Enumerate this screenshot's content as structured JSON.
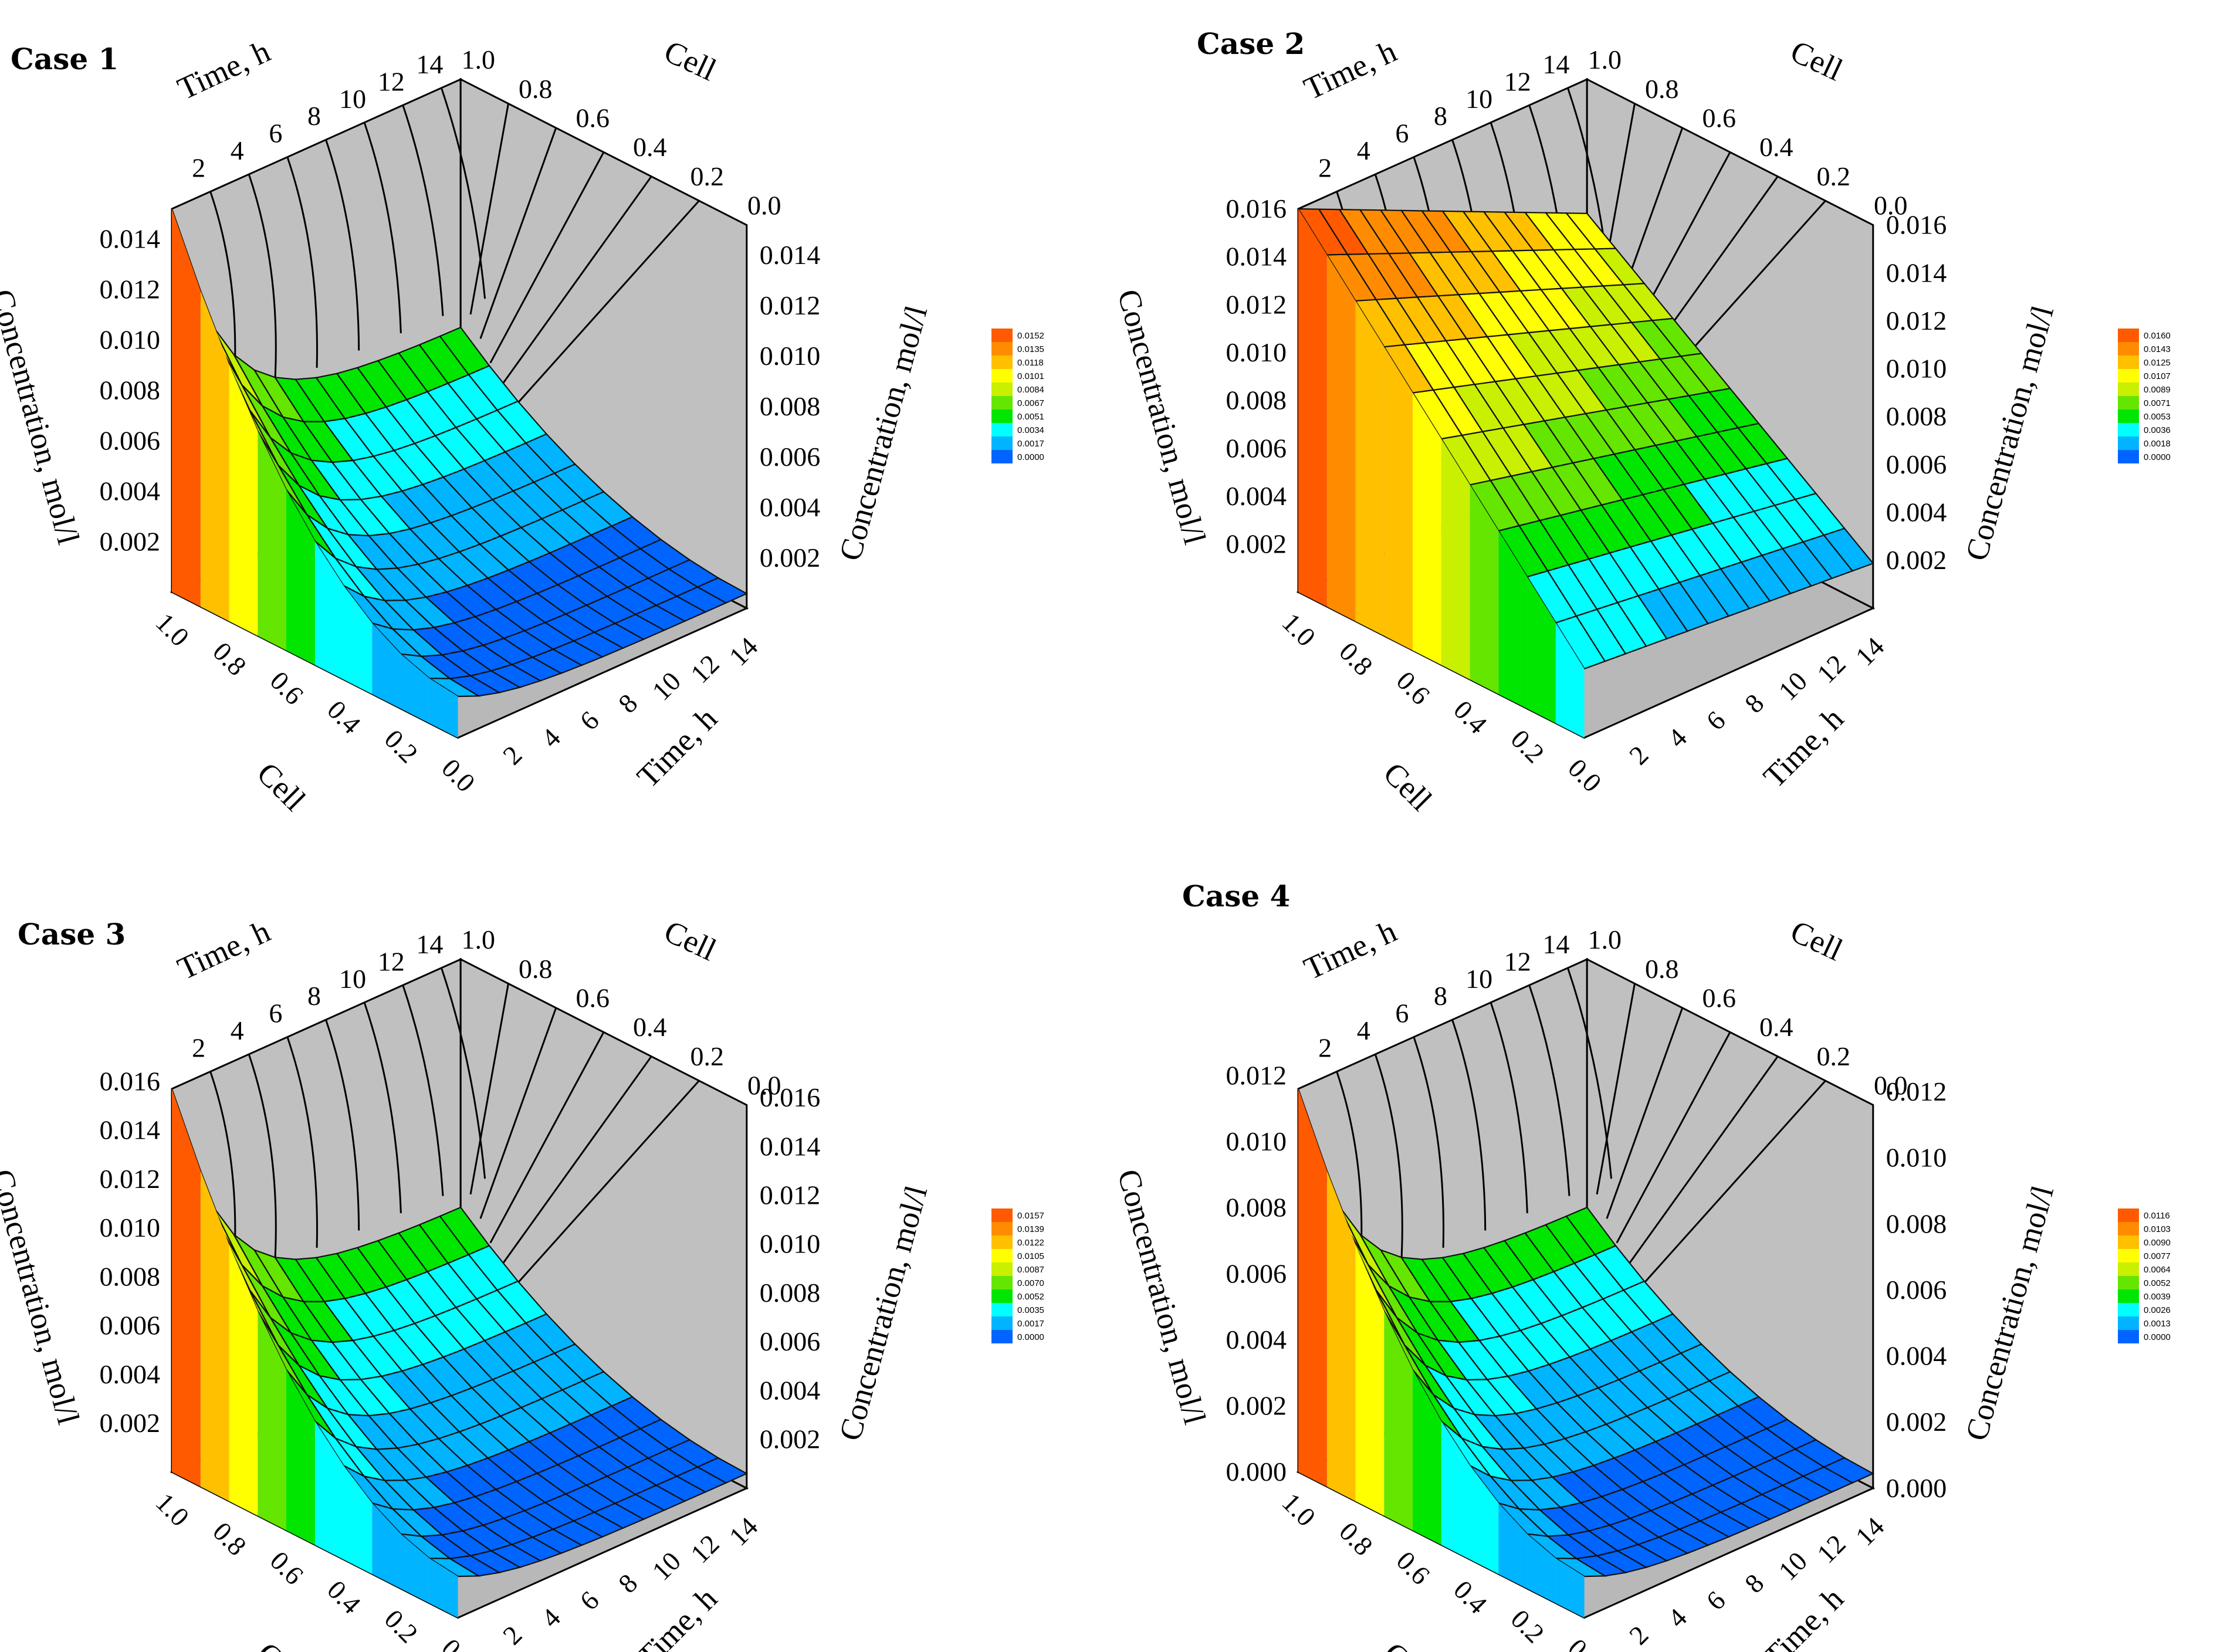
{
  "figure": {
    "description_free": true
  },
  "chart_data": [
    {
      "type": "surface",
      "title": "Case 1",
      "x_label": "Time, h",
      "y_label": "Cell",
      "z_label": "Concentration, mol/l",
      "time_ticks": [
        "2",
        "4",
        "6",
        "8",
        "10",
        "12",
        "14"
      ],
      "cell_ticks": [
        "1.0",
        "0.8",
        "0.6",
        "0.4",
        "0.2",
        "0.0"
      ],
      "z_ticks": [
        "0.002",
        "0.004",
        "0.006",
        "0.008",
        "0.010",
        "0.012",
        "0.014"
      ],
      "time_range": [
        0,
        15
      ],
      "cell_range": [
        0,
        1
      ],
      "z_range": [
        0,
        0.0152
      ],
      "max_value": 0.0152,
      "surface_shape": "decay",
      "legend": [
        "0.0152",
        "0.0135",
        "0.0118",
        "0.0101",
        "0.0084",
        "0.0067",
        "0.0051",
        "0.0034",
        "0.0017",
        "0.0000"
      ]
    },
    {
      "type": "surface",
      "title": "Case 2",
      "x_label": "Time, h",
      "y_label": "Cell",
      "z_label": "Concentration, mol/l",
      "time_ticks": [
        "2",
        "4",
        "6",
        "8",
        "10",
        "12",
        "14"
      ],
      "cell_ticks": [
        "1.0",
        "0.8",
        "0.6",
        "0.4",
        "0.2",
        "0.0"
      ],
      "z_ticks": [
        "0.002",
        "0.004",
        "0.006",
        "0.008",
        "0.010",
        "0.012",
        "0.014",
        "0.016"
      ],
      "time_range": [
        0,
        15
      ],
      "cell_range": [
        0,
        1
      ],
      "z_range": [
        0,
        0.016
      ],
      "max_value": 0.016,
      "surface_shape": "linear",
      "legend": [
        "0.0160",
        "0.0143",
        "0.0125",
        "0.0107",
        "0.0089",
        "0.0071",
        "0.0053",
        "0.0036",
        "0.0018",
        "0.0000"
      ]
    },
    {
      "type": "surface",
      "title": "Case 3",
      "x_label": "Time, h",
      "y_label": "Cell",
      "z_label": "Concentration, mol/l",
      "time_ticks": [
        "2",
        "4",
        "6",
        "8",
        "10",
        "12",
        "14"
      ],
      "cell_ticks": [
        "1.0",
        "0.8",
        "0.6",
        "0.4",
        "0.2",
        "0.0"
      ],
      "z_ticks": [
        "0.002",
        "0.004",
        "0.006",
        "0.008",
        "0.010",
        "0.012",
        "0.014",
        "0.016"
      ],
      "time_range": [
        0,
        15
      ],
      "cell_range": [
        0,
        1
      ],
      "z_range": [
        0,
        0.0157
      ],
      "max_value": 0.0157,
      "surface_shape": "decay",
      "legend": [
        "0.0157",
        "0.0139",
        "0.0122",
        "0.0105",
        "0.0087",
        "0.0070",
        "0.0052",
        "0.0035",
        "0.0017",
        "0.0000"
      ]
    },
    {
      "type": "surface",
      "title": "Case 4",
      "x_label": "Time, h",
      "y_label": "Cell",
      "z_label": "Concentration, mol/l",
      "time_ticks": [
        "2",
        "4",
        "6",
        "8",
        "10",
        "12",
        "14"
      ],
      "cell_ticks": [
        "1.0",
        "0.8",
        "0.6",
        "0.4",
        "0.2",
        "0.0"
      ],
      "z_ticks": [
        "0.000",
        "0.002",
        "0.004",
        "0.006",
        "0.008",
        "0.010",
        "0.012"
      ],
      "time_range": [
        0,
        15
      ],
      "cell_range": [
        0,
        1
      ],
      "z_range": [
        0,
        0.0116
      ],
      "max_value": 0.0116,
      "surface_shape": "decay",
      "legend": [
        "0.0116",
        "0.0103",
        "0.0090",
        "0.0077",
        "0.0064",
        "0.0052",
        "0.0039",
        "0.0026",
        "0.0013",
        "0.0000"
      ]
    }
  ],
  "colors": {
    "wall": "#c0c0c0",
    "palette": [
      "#ff5a00",
      "#ff8c00",
      "#ffc000",
      "#ffff00",
      "#c8f000",
      "#64e600",
      "#00e600",
      "#00ffff",
      "#00b4ff",
      "#0064ff"
    ]
  }
}
